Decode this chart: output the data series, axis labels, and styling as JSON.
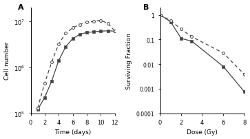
{
  "panel_A": {
    "solid_line": {
      "x": [
        1,
        2,
        3,
        4,
        5,
        6,
        7,
        8,
        9,
        10,
        11,
        12
      ],
      "y": [
        120000.0,
        220000.0,
        500000.0,
        1400000.0,
        2800000.0,
        4200000.0,
        5200000.0,
        5700000.0,
        5900000.0,
        6100000.0,
        6200000.0,
        6100000.0
      ]
    },
    "dashed_line": {
      "x": [
        1,
        2,
        3,
        4,
        5,
        6,
        7,
        8,
        9,
        10,
        11,
        12
      ],
      "y": [
        130000.0,
        450000.0,
        1300000.0,
        3200000.0,
        5500000.0,
        7200000.0,
        8500000.0,
        9500000.0,
        10000000.0,
        10500000.0,
        9000000.0,
        6200000.0
      ]
    },
    "ylim": [
      100000.0,
      20000000.0
    ],
    "xlim": [
      0,
      12
    ],
    "xlabel": "Time (days)",
    "ylabel": "Cell number",
    "label": "A",
    "yticks": [
      100000.0,
      1000000.0,
      10000000.0
    ],
    "ytick_labels": [
      "10$^5$",
      "10$^6$",
      "10$^7$"
    ],
    "xticks": [
      0,
      2,
      4,
      6,
      8,
      10,
      12
    ]
  },
  "panel_B": {
    "solid_line": {
      "x": [
        0,
        1,
        2,
        3,
        6,
        8
      ],
      "y": [
        1.0,
        0.52,
        0.11,
        0.085,
        0.008,
        0.00075
      ]
    },
    "dashed_line": {
      "x": [
        0,
        1,
        2,
        3,
        6,
        8
      ],
      "y": [
        1.0,
        0.58,
        0.26,
        0.13,
        0.028,
        0.0038
      ]
    },
    "ylim": [
      0.0001,
      2.0
    ],
    "xlim": [
      0,
      8
    ],
    "xlabel": "Dose (Gy)",
    "ylabel": "Surviving Fraction",
    "label": "B",
    "yticks": [
      0.0001,
      0.001,
      0.01,
      0.1,
      1.0
    ],
    "ytick_labels": [
      "0.0001",
      "0.001",
      "0.01",
      "0.1",
      "1"
    ],
    "xticks": [
      0,
      2,
      4,
      6,
      8
    ]
  },
  "line_color": "#444444",
  "marker_solid": "s",
  "marker_dashed": "o",
  "markersize": 2.8,
  "linewidth": 0.9
}
